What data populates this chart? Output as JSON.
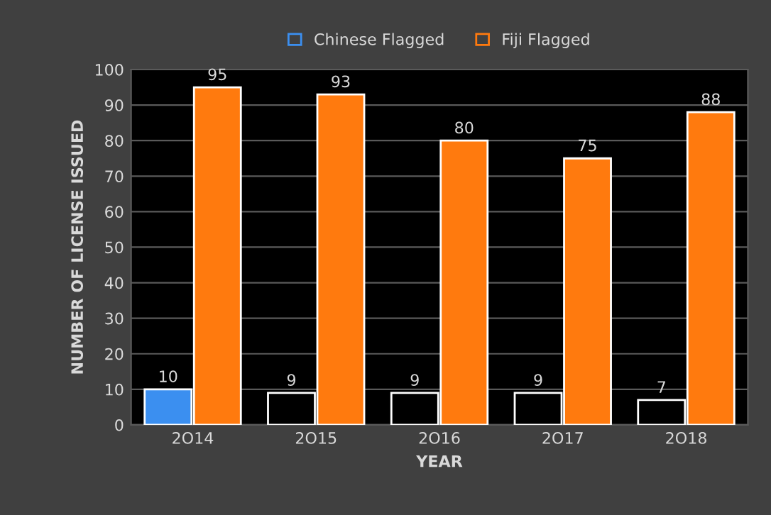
{
  "chart_data": {
    "type": "bar",
    "xlabel": "YEAR",
    "ylabel": "NUMBER OF LICENSE ISSUED",
    "categories": [
      "2O14",
      "2O15",
      "2O16",
      "2O17",
      "2O18"
    ],
    "series": [
      {
        "name": "Chinese Flagged",
        "color": "#3b8ff0",
        "colors": [
          "#3b8ff0",
          "#000000",
          "#000000",
          "#000000",
          "#000000"
        ],
        "values": [
          10,
          9,
          9,
          9,
          7
        ]
      },
      {
        "name": "Fiji Flagged",
        "color": "#ff7a0e",
        "values": [
          95,
          93,
          80,
          75,
          88
        ]
      }
    ],
    "ylim": [
      0,
      100
    ],
    "yticks": [
      0,
      10,
      20,
      30,
      40,
      50,
      60,
      70,
      80,
      90,
      100
    ],
    "data_labels": true,
    "grid": "y",
    "legend": "top"
  }
}
